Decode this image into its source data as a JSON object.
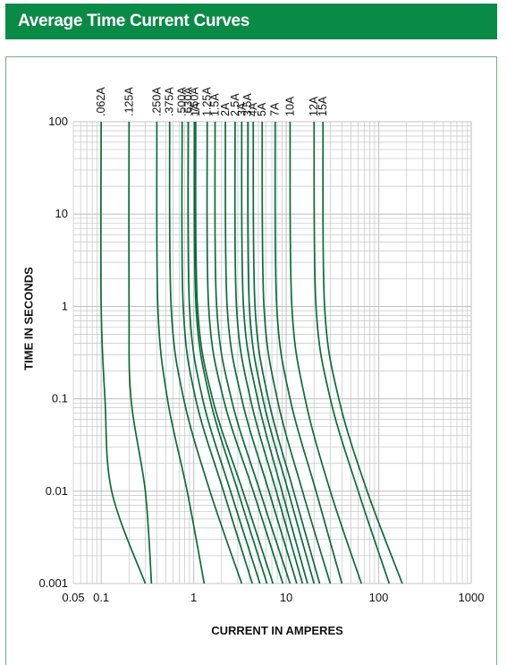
{
  "colors": {
    "header_bg": "#0a8a47",
    "curve": "#0b6b3e",
    "grid": "#c4c4c4",
    "frame": "#6fb089"
  },
  "header": {
    "title": "Average Time Current Curves"
  },
  "chart_data": {
    "type": "line",
    "title": "Average Time Current Curves",
    "xlabel": "CURRENT IN AMPERES",
    "ylabel": "TIME IN SECONDS",
    "xscale": "log",
    "yscale": "log",
    "xlim": [
      0.05,
      1000
    ],
    "ylim": [
      0.001,
      100
    ],
    "x_tick_labels": [
      "0.05",
      "0.1",
      "1",
      "10",
      "100",
      "1000"
    ],
    "x_ticks": [
      0.05,
      0.1,
      1,
      10,
      100,
      1000
    ],
    "y_tick_labels": [
      "0.001",
      "0.01",
      "0.1",
      "1",
      "10",
      "100"
    ],
    "y_ticks": [
      0.001,
      0.01,
      0.1,
      1,
      10,
      100
    ],
    "grid": true,
    "series": [
      {
        "name": ".062A",
        "x": [
          0.1,
          0.1,
          0.11,
          0.13,
          0.3
        ],
        "y": [
          100,
          1,
          0.1,
          0.01,
          0.001
        ]
      },
      {
        "name": ".125A",
        "x": [
          0.2,
          0.2,
          0.21,
          0.3,
          0.35
        ],
        "y": [
          100,
          1,
          0.1,
          0.01,
          0.001
        ]
      },
      {
        "name": ".250A",
        "x": [
          0.4,
          0.41,
          0.52,
          0.85,
          1.3
        ],
        "y": [
          100,
          1,
          0.1,
          0.01,
          0.001
        ]
      },
      {
        "name": ".375A",
        "x": [
          0.55,
          0.57,
          0.78,
          1.5,
          3.3
        ],
        "y": [
          100,
          1,
          0.1,
          0.01,
          0.001
        ]
      },
      {
        "name": ".500A",
        "x": [
          0.75,
          0.77,
          1.05,
          2.1,
          4.3
        ],
        "y": [
          100,
          1,
          0.1,
          0.01,
          0.001
        ]
      },
      {
        "name": ".630A",
        "x": [
          0.87,
          0.9,
          1.25,
          2.5,
          5.2
        ],
        "y": [
          100,
          1,
          0.1,
          0.01,
          0.001
        ]
      },
      {
        "name": ".750A",
        "x": [
          1.02,
          1.06,
          1.5,
          3.0,
          6.2
        ],
        "y": [
          100,
          1,
          0.1,
          0.01,
          0.001
        ]
      },
      {
        "name": "1A",
        "x": [
          1.05,
          1.1,
          1.6,
          3.4,
          7.2
        ],
        "y": [
          100,
          1,
          0.1,
          0.01,
          0.001
        ]
      },
      {
        "name": "1.25A",
        "x": [
          1.4,
          1.45,
          2.1,
          4.4,
          9.2
        ],
        "y": [
          100,
          1,
          0.1,
          0.01,
          0.001
        ]
      },
      {
        "name": "1.5A",
        "x": [
          1.7,
          1.77,
          2.55,
          5.2,
          11
        ],
        "y": [
          100,
          1,
          0.1,
          0.01,
          0.001
        ]
      },
      {
        "name": "2A",
        "x": [
          2.2,
          2.3,
          3.3,
          6.5,
          13
        ],
        "y": [
          100,
          1,
          0.1,
          0.01,
          0.001
        ]
      },
      {
        "name": "2.5A",
        "x": [
          2.8,
          2.9,
          4.1,
          7.8,
          15
        ],
        "y": [
          100,
          1,
          0.1,
          0.01,
          0.001
        ]
      },
      {
        "name": "3A",
        "x": [
          3.3,
          3.45,
          4.9,
          9.0,
          17
        ],
        "y": [
          100,
          1,
          0.1,
          0.01,
          0.001
        ]
      },
      {
        "name": "3.5A",
        "x": [
          3.85,
          4.0,
          5.6,
          10.5,
          20
        ],
        "y": [
          100,
          1,
          0.1,
          0.01,
          0.001
        ]
      },
      {
        "name": "4A",
        "x": [
          4.4,
          4.6,
          6.4,
          12,
          23
        ],
        "y": [
          100,
          1,
          0.1,
          0.01,
          0.001
        ]
      },
      {
        "name": "5A",
        "x": [
          5.5,
          5.75,
          8.0,
          15,
          30
        ],
        "y": [
          100,
          1,
          0.1,
          0.01,
          0.001
        ]
      },
      {
        "name": "7A",
        "x": [
          7.6,
          7.9,
          11,
          21,
          40
        ],
        "y": [
          100,
          1,
          0.1,
          0.01,
          0.001
        ]
      },
      {
        "name": "10A",
        "x": [
          11,
          11.5,
          16,
          30,
          65
        ],
        "y": [
          100,
          1,
          0.1,
          0.01,
          0.001
        ]
      },
      {
        "name": "12A",
        "x": [
          20,
          21,
          30,
          60,
          130
        ],
        "y": [
          100,
          1,
          0.1,
          0.01,
          0.001
        ]
      },
      {
        "name": "15A",
        "x": [
          25,
          26,
          37,
          75,
          180
        ],
        "y": [
          100,
          1,
          0.1,
          0.01,
          0.001
        ]
      }
    ]
  }
}
